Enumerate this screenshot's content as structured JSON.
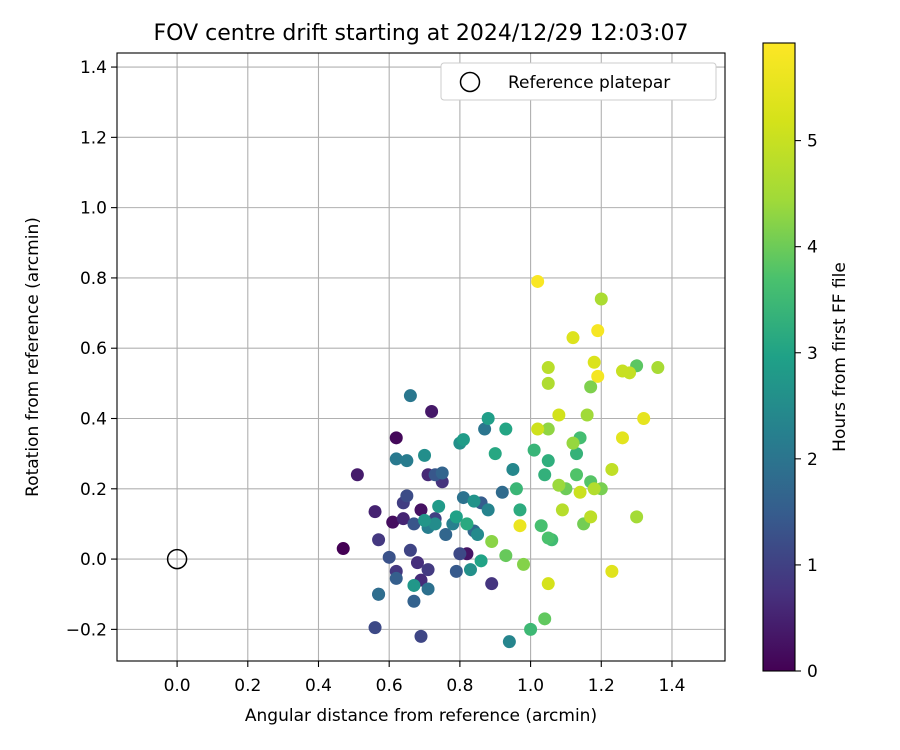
{
  "chart_data": {
    "type": "scatter",
    "title": "FOV centre drift starting at 2024/12/29 12:03:07",
    "xlabel": "Angular distance from reference (arcmin)",
    "ylabel": "Rotation from reference (arcmin)",
    "xlim": [
      -0.17,
      1.55
    ],
    "ylim": [
      -0.29,
      1.44
    ],
    "xticks": [
      0.0,
      0.2,
      0.4,
      0.6,
      0.8,
      1.0,
      1.2,
      1.4
    ],
    "xtick_labels": [
      "0.0",
      "0.2",
      "0.4",
      "0.6",
      "0.8",
      "1.0",
      "1.2",
      "1.4"
    ],
    "yticks": [
      -0.2,
      0.0,
      0.2,
      0.4,
      0.6,
      0.8,
      1.0,
      1.2,
      1.4
    ],
    "ytick_labels": [
      "−0.2",
      "0.0",
      "0.2",
      "0.4",
      "0.6",
      "0.8",
      "1.0",
      "1.2",
      "1.4"
    ],
    "grid": true,
    "legend": {
      "position": "top-right",
      "entries": [
        "Reference platepar"
      ]
    },
    "reference_point": {
      "x": 0.0,
      "y": 0.0,
      "label": "Reference platepar"
    },
    "colorbar": {
      "label": "Hours from first FF file",
      "colormap": "viridis",
      "range": [
        0,
        5.92
      ],
      "ticks": [
        0,
        1,
        2,
        3,
        4,
        5
      ],
      "tick_labels": [
        "0",
        "1",
        "2",
        "3",
        "4",
        "5"
      ]
    },
    "series": [
      {
        "points": [
          [
            0.47,
            0.03,
            0.0
          ],
          [
            0.62,
            0.345,
            0.1
          ],
          [
            0.61,
            0.105,
            0.2
          ],
          [
            0.69,
            0.14,
            0.25
          ],
          [
            0.82,
            0.015,
            0.3
          ],
          [
            0.72,
            0.42,
            0.35
          ],
          [
            0.51,
            0.24,
            0.4
          ],
          [
            0.56,
            0.135,
            0.5
          ],
          [
            0.64,
            0.115,
            0.55
          ],
          [
            0.71,
            0.24,
            0.6
          ],
          [
            0.69,
            -0.06,
            0.65
          ],
          [
            0.68,
            -0.01,
            0.7
          ],
          [
            0.75,
            0.22,
            0.75
          ],
          [
            0.89,
            -0.07,
            0.8
          ],
          [
            0.57,
            0.055,
            0.85
          ],
          [
            0.62,
            -0.035,
            0.85
          ],
          [
            0.71,
            -0.03,
            0.9
          ],
          [
            0.64,
            0.16,
            0.95
          ],
          [
            0.73,
            0.115,
            1.0
          ],
          [
            0.66,
            0.025,
            1.05
          ],
          [
            0.69,
            -0.22,
            1.1
          ],
          [
            0.56,
            -0.195,
            1.15
          ],
          [
            0.8,
            0.015,
            1.15
          ],
          [
            0.65,
            0.18,
            1.2
          ],
          [
            0.57,
            -0.1,
            1.25
          ],
          [
            0.6,
            0.005,
            1.3
          ],
          [
            0.67,
            0.1,
            1.35
          ],
          [
            0.73,
            0.24,
            1.4
          ],
          [
            0.79,
            -0.035,
            1.45
          ],
          [
            0.86,
            0.16,
            1.5
          ],
          [
            0.62,
            -0.055,
            1.55
          ],
          [
            0.67,
            -0.12,
            1.6
          ],
          [
            0.75,
            0.245,
            1.65
          ],
          [
            0.76,
            0.07,
            1.7
          ],
          [
            0.84,
            0.08,
            1.75
          ],
          [
            0.92,
            0.19,
            1.8
          ],
          [
            0.57,
            -0.1,
            1.85
          ],
          [
            0.71,
            -0.085,
            1.9
          ],
          [
            0.81,
            0.175,
            1.95
          ],
          [
            0.87,
            0.37,
            2.0
          ],
          [
            0.66,
            0.465,
            2.05
          ],
          [
            0.62,
            0.285,
            2.1
          ],
          [
            0.65,
            0.28,
            2.15
          ],
          [
            0.71,
            0.09,
            2.2
          ],
          [
            0.78,
            0.1,
            2.25
          ],
          [
            0.88,
            0.14,
            2.3
          ],
          [
            0.94,
            -0.235,
            2.35
          ],
          [
            0.95,
            0.255,
            2.4
          ],
          [
            0.85,
            0.07,
            2.45
          ],
          [
            0.73,
            0.1,
            2.5
          ],
          [
            0.7,
            0.295,
            2.55
          ],
          [
            0.8,
            0.33,
            2.6
          ],
          [
            0.83,
            -0.03,
            2.6
          ],
          [
            0.84,
            0.165,
            2.65
          ],
          [
            0.7,
            0.11,
            2.7
          ],
          [
            0.67,
            -0.075,
            2.75
          ],
          [
            0.74,
            0.15,
            2.8
          ],
          [
            0.81,
            0.34,
            2.85
          ],
          [
            0.88,
            0.4,
            2.9
          ],
          [
            0.79,
            0.12,
            2.95
          ],
          [
            0.86,
            -0.005,
            3.0
          ],
          [
            0.93,
            0.37,
            3.05
          ],
          [
            0.9,
            0.3,
            3.1
          ],
          [
            0.82,
            0.1,
            3.15
          ],
          [
            0.97,
            0.14,
            3.2
          ],
          [
            1.05,
            0.28,
            3.25
          ],
          [
            1.04,
            0.24,
            3.3
          ],
          [
            1.13,
            0.3,
            3.35
          ],
          [
            1.01,
            0.31,
            3.4
          ],
          [
            0.96,
            0.2,
            3.45
          ],
          [
            1.0,
            -0.2,
            3.5
          ],
          [
            1.06,
            0.055,
            3.55
          ],
          [
            1.14,
            0.345,
            3.6
          ],
          [
            1.03,
            0.095,
            3.65
          ],
          [
            1.05,
            0.06,
            3.7
          ],
          [
            1.13,
            0.24,
            3.75
          ],
          [
            1.17,
            0.22,
            3.8
          ],
          [
            1.3,
            0.55,
            3.85
          ],
          [
            1.04,
            -0.17,
            3.9
          ],
          [
            0.93,
            0.01,
            3.95
          ],
          [
            1.1,
            0.2,
            4.0
          ],
          [
            1.15,
            0.1,
            4.05
          ],
          [
            1.2,
            0.2,
            4.1
          ],
          [
            1.17,
            0.49,
            4.15
          ],
          [
            0.98,
            -0.015,
            4.2
          ],
          [
            0.89,
            0.05,
            4.25
          ],
          [
            1.05,
            0.37,
            4.3
          ],
          [
            1.12,
            0.33,
            4.35
          ],
          [
            1.08,
            0.21,
            4.4
          ],
          [
            1.16,
            0.41,
            4.45
          ],
          [
            1.3,
            0.12,
            4.5
          ],
          [
            1.36,
            0.545,
            4.55
          ],
          [
            1.2,
            0.74,
            4.6
          ],
          [
            1.05,
            0.5,
            4.65
          ],
          [
            1.18,
            0.2,
            4.7
          ],
          [
            1.09,
            0.14,
            4.75
          ],
          [
            1.05,
            0.545,
            4.8
          ],
          [
            1.17,
            0.12,
            4.85
          ],
          [
            1.23,
            0.255,
            4.9
          ],
          [
            1.28,
            0.53,
            4.95
          ],
          [
            1.26,
            0.535,
            5.0
          ],
          [
            1.14,
            0.19,
            5.05
          ],
          [
            1.02,
            0.37,
            5.1
          ],
          [
            1.08,
            0.41,
            5.15
          ],
          [
            1.05,
            -0.07,
            5.2
          ],
          [
            1.18,
            0.56,
            5.3
          ],
          [
            1.12,
            0.63,
            5.35
          ],
          [
            1.23,
            -0.035,
            5.4
          ],
          [
            1.26,
            0.345,
            5.45
          ],
          [
            1.32,
            0.4,
            5.5
          ],
          [
            1.02,
            0.79,
            5.85
          ],
          [
            1.19,
            0.65,
            5.8
          ],
          [
            1.19,
            0.52,
            5.75
          ],
          [
            0.97,
            0.095,
            5.6
          ]
        ]
      }
    ]
  }
}
